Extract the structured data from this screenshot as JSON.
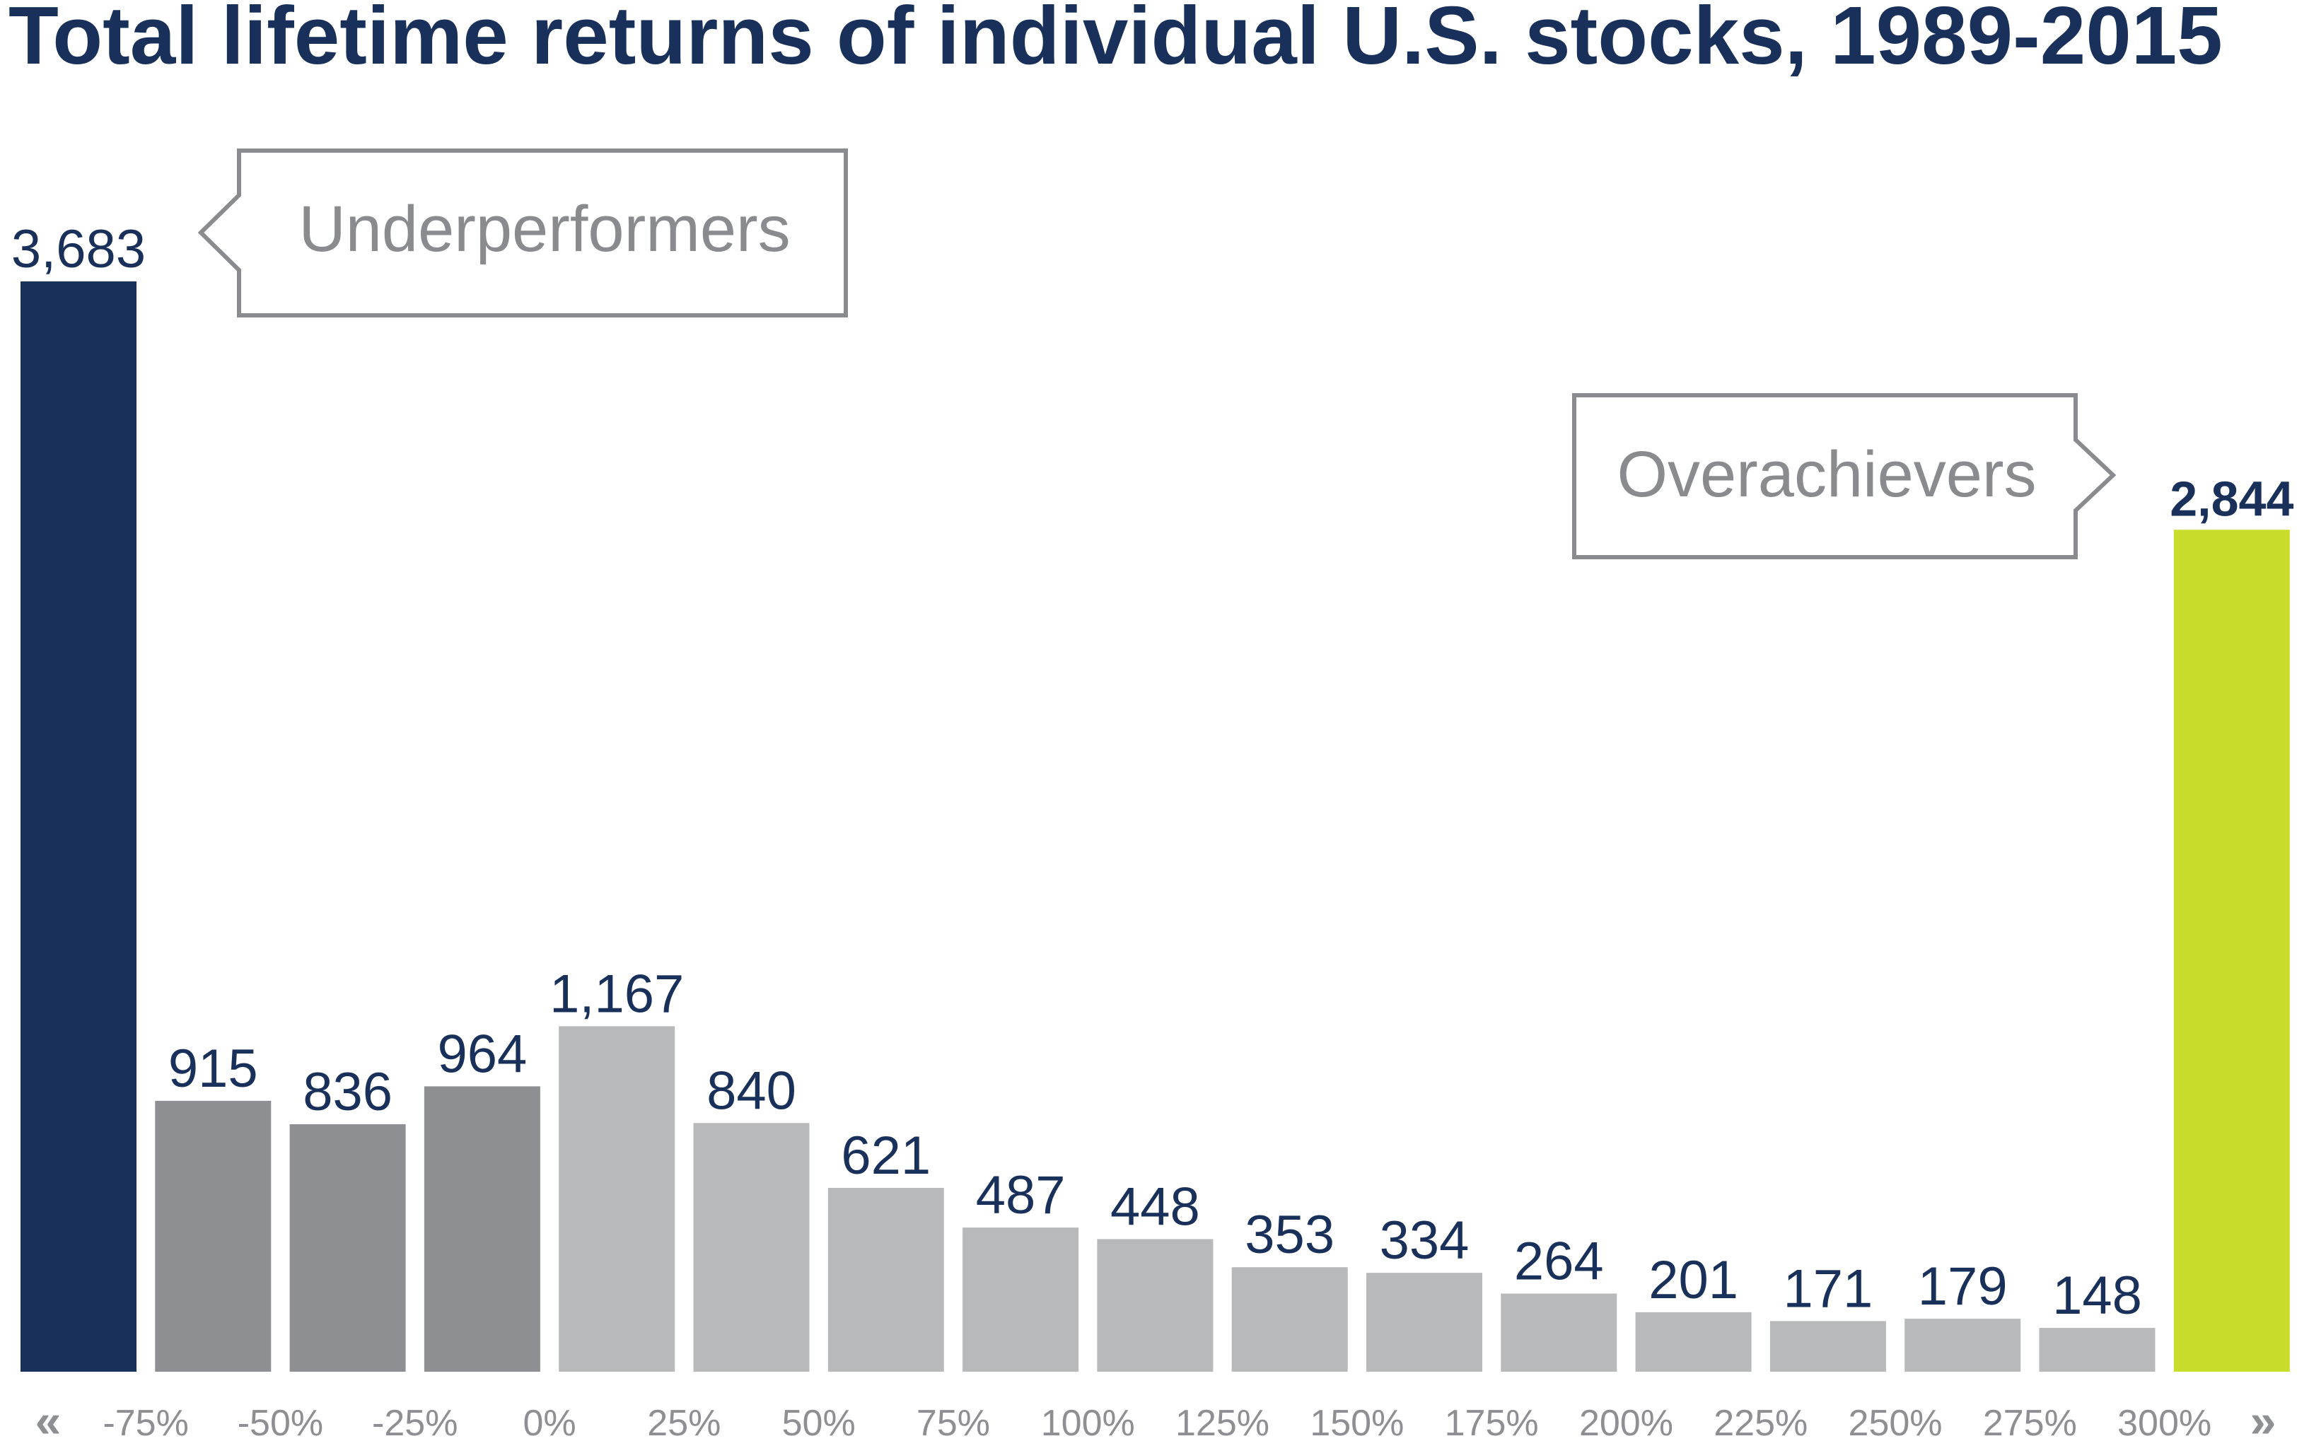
{
  "chart_data": {
    "type": "bar",
    "title": "Total lifetime returns of individual U.S. stocks, 1989-2015",
    "xlabel": "",
    "ylabel": "",
    "ylim": [
      0,
      3900
    ],
    "grid": false,
    "legend": "none",
    "tick_labels": [
      "-75%",
      "-50%",
      "-25%",
      "0%",
      "25%",
      "50%",
      "75%",
      "100%",
      "125%",
      "150%",
      "175%",
      "200%",
      "225%",
      "250%",
      "275%",
      "300%"
    ],
    "values": [
      3683,
      915,
      836,
      964,
      1167,
      840,
      621,
      487,
      448,
      353,
      334,
      264,
      201,
      171,
      179,
      148,
      2844
    ],
    "value_labels": [
      "3,683",
      "915",
      "836",
      "964",
      "1,167",
      "840",
      "621",
      "487",
      "448",
      "353",
      "334",
      "264",
      "201",
      "171",
      "179",
      "148",
      "2,844"
    ],
    "bar_colors": [
      "#18305a",
      "#8e8f93",
      "#8e8f93",
      "#8e8f93",
      "#b8b9bb",
      "#b8b9bb",
      "#b8b9bb",
      "#b8b9bb",
      "#b8b9bb",
      "#b8b9bb",
      "#b8b9bb",
      "#b8b9bb",
      "#b8b9bb",
      "#b8b9bb",
      "#b8b9bb",
      "#b8b9bb",
      "#c8dc2c"
    ],
    "annotations": [
      {
        "text": "Underperformers",
        "points_to": "first bar"
      },
      {
        "text": "Overachievers",
        "points_to": "last bar"
      }
    ],
    "axis_arrows": {
      "left": "«",
      "right": "»"
    }
  },
  "colors": {
    "title": "#18305a",
    "value_label": "#18305a",
    "tick_label": "#8e8e93",
    "callout_border": "#8a8b8e",
    "callout_text": "#8a8b8e"
  }
}
